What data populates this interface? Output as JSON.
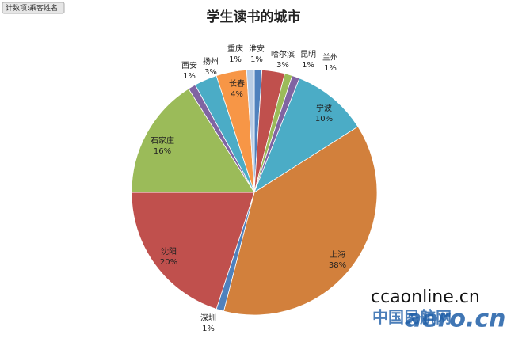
{
  "chart_data": {
    "type": "pie",
    "title": "学生读书的城市",
    "field_button": "计数项:乘客姓名",
    "categories": [
      "淮安",
      "哈尔滨",
      "昆明",
      "兰州",
      "宁波",
      "上海",
      "深圳",
      "沈阳",
      "石家庄",
      "西安",
      "扬州",
      "长春",
      "重庆"
    ],
    "values": [
      1,
      3,
      1,
      1,
      10,
      38,
      1,
      20,
      16,
      1,
      3,
      4,
      1
    ],
    "value_labels": [
      "1%",
      "3%",
      "1%",
      "1%",
      "10%",
      "38%",
      "1%",
      "20%",
      "16%",
      "1%",
      "3%",
      "4%",
      "1%"
    ],
    "colors": [
      "#4f81bd",
      "#c0504d",
      "#9bbb59",
      "#8064a2",
      "#4bacc6",
      "#d2803c",
      "#4f81bd",
      "#c0504d",
      "#9bbb59",
      "#8064a2",
      "#4bacc6",
      "#f79646",
      "#b8cce4"
    ],
    "watermark": [
      "ccaonline.cn",
      "中国民航网",
      "aero.cn"
    ]
  }
}
